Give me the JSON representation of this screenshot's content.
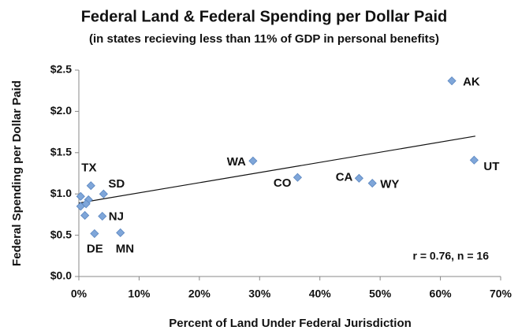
{
  "chart_data": {
    "type": "scatter",
    "title": "Federal Land & Federal Spending per Dollar Paid",
    "subtitle": "(in states recieving less than 11% of GDP in personal benefits)",
    "x_label": "Percent of Land Under Federal Jurisdiction",
    "y_label": "Federal Spending per Dollar Paid",
    "annotation": "r = 0.76, n = 16",
    "color": "#7fa6d9",
    "x": [
      61.9,
      65.6,
      48.7,
      46.5,
      36.3,
      28.9,
      2.0,
      4.1,
      3.9,
      2.6,
      6.9,
      0.3,
      1.6,
      1.2,
      0.3,
      1.0
    ],
    "y": [
      2.37,
      1.41,
      1.13,
      1.19,
      1.2,
      1.4,
      1.1,
      1.0,
      0.73,
      0.52,
      0.53,
      0.97,
      0.93,
      0.88,
      0.85,
      0.74
    ],
    "labels": [
      "AK",
      "UT",
      "WY",
      "CA",
      "CO",
      "WA",
      "TX",
      "SD",
      "NJ",
      "DE",
      "MN",
      null,
      null,
      null,
      null,
      null
    ],
    "trendline": {
      "x": [
        0,
        65.8
      ],
      "y": [
        0.89,
        1.7
      ]
    },
    "xlim": [
      0,
      70
    ],
    "ylim": [
      0,
      2.5
    ],
    "xticks": [
      {
        "value": 0,
        "label": "0%"
      },
      {
        "value": 10,
        "label": "10%"
      },
      {
        "value": 20,
        "label": "20%"
      },
      {
        "value": 30,
        "label": "30%"
      },
      {
        "value": 40,
        "label": "40%"
      },
      {
        "value": 50,
        "label": "50%"
      },
      {
        "value": 60,
        "label": "60%"
      },
      {
        "value": 70,
        "label": "70%"
      }
    ],
    "yticks": [
      {
        "value": 0,
        "label": "$0.0"
      },
      {
        "value": 0.5,
        "label": "$0.5"
      },
      {
        "value": 1,
        "label": "$1.0"
      },
      {
        "value": 1.5,
        "label": "$1.5"
      },
      {
        "value": 2,
        "label": "$2.0"
      },
      {
        "value": 2.5,
        "label": "$2.5"
      }
    ],
    "grid": false
  }
}
